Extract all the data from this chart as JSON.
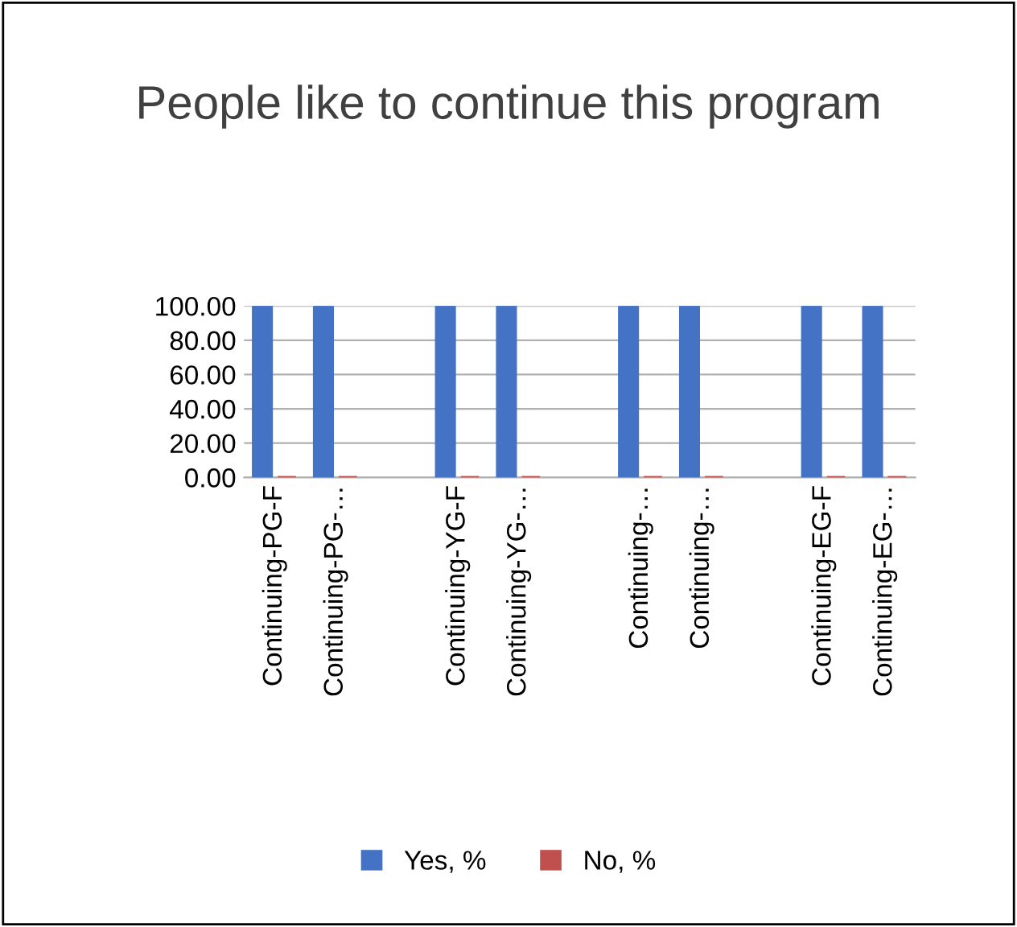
{
  "chart_data": {
    "type": "bar",
    "title": "People like to continue this program",
    "categories": [
      "Continuing-PG-F",
      "Continuing-PG-…",
      null,
      "Continuing-YG-F",
      "Continuing-YG-…",
      null,
      "Continuing-…",
      "Continuing-…",
      null,
      "Continuing-EG-F",
      "Continuing-EG-…"
    ],
    "series": [
      {
        "name": "Yes, %",
        "color": "#4472c4",
        "values": [
          100,
          100,
          null,
          100,
          100,
          null,
          100,
          100,
          null,
          100,
          100
        ]
      },
      {
        "name": "No, %",
        "color": "#c0504d",
        "values": [
          0,
          0,
          null,
          0,
          0,
          null,
          0,
          0,
          null,
          0,
          0
        ]
      }
    ],
    "ylim": [
      0,
      100
    ],
    "yticks": [
      {
        "value": 0,
        "label": "0.00"
      },
      {
        "value": 20,
        "label": "20.00"
      },
      {
        "value": 40,
        "label": "40.00"
      },
      {
        "value": 60,
        "label": "60.00"
      },
      {
        "value": 80,
        "label": "80.00"
      },
      {
        "value": 100,
        "label": "100.00"
      }
    ],
    "grid": "y",
    "legend": "bottom"
  }
}
